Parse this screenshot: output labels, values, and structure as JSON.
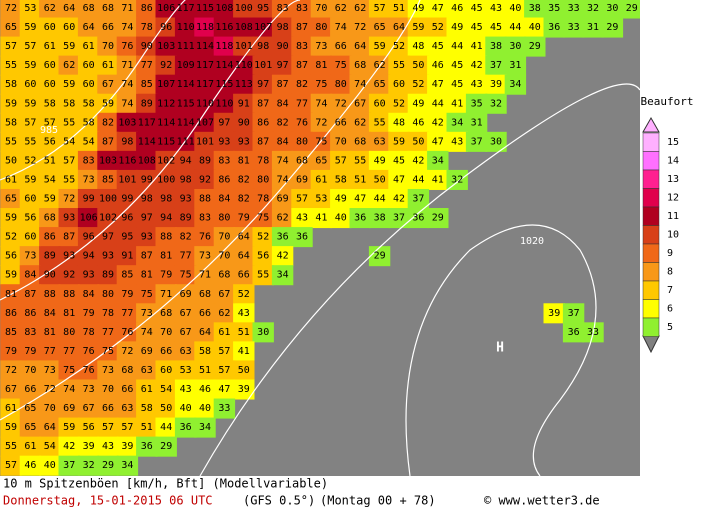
{
  "map": {
    "rows": [
      [
        72,
        53,
        62,
        64,
        68,
        68,
        71,
        86,
        106,
        117,
        115,
        108,
        100,
        95,
        83,
        83,
        70,
        62,
        62,
        57,
        51,
        49,
        47,
        46,
        45,
        43,
        40,
        38,
        35,
        33,
        32,
        30,
        29
      ],
      [
        65,
        59,
        60,
        60,
        64,
        66,
        74,
        78,
        96,
        110,
        118,
        116,
        108,
        107,
        98,
        87,
        80,
        74,
        72,
        65,
        64,
        59,
        52,
        49,
        45,
        45,
        44,
        40,
        36,
        33,
        31,
        29
      ],
      [
        57,
        57,
        61,
        59,
        61,
        70,
        76,
        90,
        103,
        111,
        114,
        118,
        101,
        98,
        90,
        83,
        73,
        66,
        64,
        59,
        52,
        48,
        45,
        44,
        41,
        38,
        30,
        29
      ],
      [
        55,
        59,
        60,
        62,
        60,
        61,
        71,
        77,
        92,
        109,
        117,
        114,
        110,
        101,
        97,
        87,
        81,
        75,
        68,
        62,
        55,
        50,
        46,
        45,
        42,
        37,
        31
      ],
      [
        58,
        60,
        60,
        59,
        60,
        67,
        74,
        85,
        107,
        114,
        117,
        115,
        113,
        97,
        87,
        82,
        75,
        80,
        74,
        65,
        60,
        52,
        47,
        45,
        43,
        39,
        34
      ],
      [
        59,
        59,
        58,
        58,
        58,
        59,
        74,
        89,
        112,
        115,
        110,
        110,
        91,
        87,
        84,
        77,
        74,
        72,
        67,
        60,
        52,
        49,
        44,
        41,
        35,
        32
      ],
      [
        58,
        57,
        57,
        55,
        58,
        82,
        103,
        117,
        114,
        114,
        107,
        97,
        90,
        86,
        82,
        76,
        72,
        66,
        62,
        55,
        48,
        46,
        42,
        34,
        31
      ],
      [
        55,
        55,
        56,
        54,
        54,
        87,
        98,
        114,
        115,
        111,
        101,
        93,
        93,
        87,
        84,
        80,
        75,
        70,
        68,
        63,
        59,
        50,
        47,
        43,
        37,
        30
      ],
      [
        50,
        52,
        51,
        57,
        83,
        103,
        116,
        108,
        102,
        94,
        89,
        83,
        81,
        78,
        74,
        68,
        65,
        57,
        55,
        49,
        45,
        42,
        34
      ],
      [
        61,
        59,
        54,
        55,
        73,
        85,
        101,
        99,
        100,
        98,
        92,
        86,
        82,
        80,
        74,
        69,
        61,
        58,
        51,
        50,
        47,
        44,
        41,
        32
      ],
      [
        65,
        60,
        59,
        72,
        99,
        100,
        99,
        98,
        98,
        93,
        88,
        84,
        82,
        78,
        69,
        57,
        53,
        49,
        47,
        44,
        42,
        37
      ],
      [
        59,
        56,
        68,
        93,
        106,
        102,
        96,
        97,
        94,
        89,
        83,
        80,
        79,
        75,
        62,
        43,
        41,
        40,
        36,
        38,
        37,
        36,
        29
      ],
      [
        52,
        60,
        86,
        87,
        96,
        97,
        95,
        93,
        88,
        82,
        76,
        70,
        64,
        52,
        36,
        36
      ],
      [
        56,
        73,
        89,
        93,
        94,
        93,
        91,
        87,
        81,
        77,
        73,
        70,
        64,
        56,
        42,
        null,
        null,
        null,
        null,
        29
      ],
      [
        59,
        84,
        90,
        92,
        93,
        89,
        85,
        81,
        79,
        75,
        71,
        68,
        66,
        55,
        34
      ],
      [
        81,
        87,
        88,
        88,
        84,
        80,
        79,
        75,
        71,
        69,
        68,
        67,
        52
      ],
      [
        86,
        86,
        84,
        81,
        79,
        78,
        77,
        73,
        68,
        67,
        66,
        62,
        43,
        null,
        null,
        null,
        null,
        null,
        null,
        null,
        null,
        null,
        null,
        null,
        null,
        null,
        null,
        null,
        39,
        37
      ],
      [
        85,
        83,
        81,
        80,
        78,
        77,
        76,
        74,
        70,
        67,
        64,
        61,
        51,
        30,
        null,
        null,
        null,
        null,
        null,
        null,
        null,
        null,
        null,
        null,
        null,
        null,
        null,
        null,
        null,
        36,
        33
      ],
      [
        79,
        79,
        77,
        77,
        76,
        75,
        72,
        69,
        66,
        63,
        58,
        57,
        41
      ],
      [
        72,
        70,
        73,
        75,
        76,
        73,
        68,
        63,
        60,
        53,
        51,
        57,
        50
      ],
      [
        67,
        66,
        72,
        74,
        73,
        70,
        66,
        61,
        54,
        43,
        46,
        47,
        39
      ],
      [
        61,
        65,
        70,
        69,
        67,
        66,
        63,
        58,
        50,
        40,
        40,
        33
      ],
      [
        59,
        65,
        64,
        59,
        56,
        57,
        57,
        51,
        44,
        36,
        34
      ],
      [
        55,
        61,
        54,
        42,
        39,
        43,
        39,
        36,
        29
      ],
      [
        57,
        46,
        40,
        37,
        32,
        29,
        34
      ]
    ],
    "isobars": [
      "985",
      "1020"
    ],
    "high": "H"
  },
  "legend": {
    "title": "Beaufort",
    "items": [
      {
        "label": 15,
        "color": "#ffb0ff"
      },
      {
        "label": 14,
        "color": "#ff70ff"
      },
      {
        "label": 13,
        "color": "#ff2090"
      },
      {
        "label": 12,
        "color": "#e0004c"
      },
      {
        "label": 11,
        "color": "#b00020"
      },
      {
        "label": 10,
        "color": "#d84018"
      },
      {
        "label": 9,
        "color": "#f06818"
      },
      {
        "label": 8,
        "color": "#f89818"
      },
      {
        "label": 7,
        "color": "#ffc800"
      },
      {
        "label": 6,
        "color": "#ffff00"
      },
      {
        "label": 5,
        "color": "#90f030"
      }
    ]
  },
  "footer": {
    "line1": "10 m Spitzenböen [km/h, Bft] (Modellvariable)",
    "date": "Donnerstag, 15-01-2015  06 UTC",
    "model": "(GFS 0.5°)",
    "run": "(Montag 00 + 78)",
    "site": "© www.wetter3.de"
  }
}
